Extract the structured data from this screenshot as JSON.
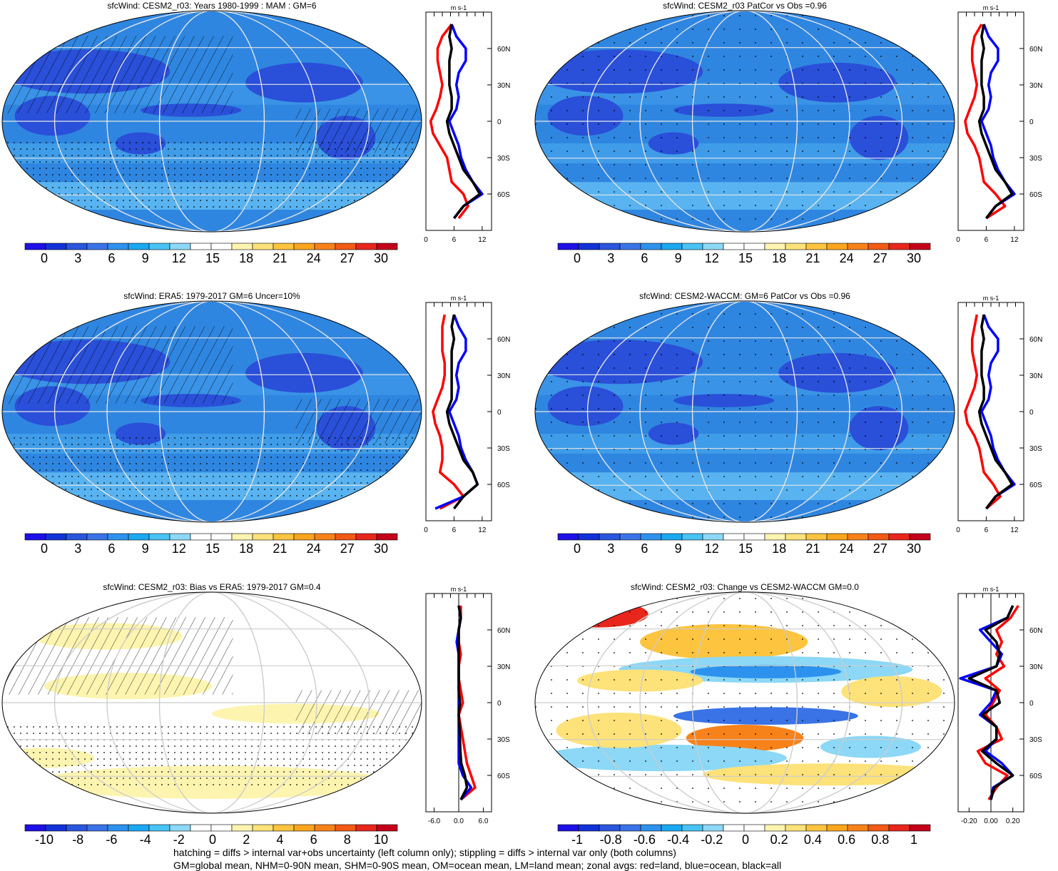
{
  "chart_data": [
    {
      "type": "heatmap",
      "title": "sfcWind: CESM2_r03: Years 1980-1999 : MAM : GM=6",
      "colorbar_ticks": [
        "0",
        "3",
        "6",
        "9",
        "12",
        "15",
        "18",
        "21",
        "24",
        "27",
        "30"
      ],
      "colorbar_range": [
        0,
        30
      ],
      "palette": "blue-white-red",
      "overlay": "hatching and stippling",
      "zonal_profile": {
        "unit": "m s-1",
        "xticks": [
          "0",
          "6",
          "12"
        ],
        "xlim": [
          0,
          14
        ],
        "lat_ticks": [
          "60N",
          "30N",
          "0",
          "30S",
          "60S"
        ],
        "lat": [
          80,
          70,
          60,
          50,
          40,
          30,
          20,
          10,
          0,
          -10,
          -20,
          -30,
          -40,
          -50,
          -60,
          -70,
          -80
        ],
        "series": [
          {
            "name": "land",
            "color": "#ff0000",
            "values": [
              5.5,
              3.5,
              2.5,
              2.5,
              3,
              3.5,
              3,
              2.2,
              1,
              1.5,
              3,
              4.5,
              5,
              5.5,
              8,
              9,
              7
            ]
          },
          {
            "name": "ocean",
            "color": "#0000ff",
            "values": [
              5.5,
              6.5,
              8.5,
              8.5,
              7,
              6.5,
              7,
              6.5,
              5,
              6,
              7,
              7.5,
              8.5,
              10,
              12,
              8,
              6
            ]
          },
          {
            "name": "all",
            "color": "#000000",
            "values": [
              5.5,
              5,
              5.5,
              5,
              5,
              5,
              5.5,
              5.5,
              4.5,
              5,
              6,
              7,
              8,
              10,
              11.5,
              8,
              6
            ]
          }
        ]
      }
    },
    {
      "type": "heatmap",
      "title": "sfcWind: CESM2_r03 PatCor vs Obs =0.96",
      "colorbar_ticks": [
        "0",
        "3",
        "6",
        "9",
        "12",
        "15",
        "18",
        "21",
        "24",
        "27",
        "30"
      ],
      "colorbar_range": [
        0,
        30
      ],
      "palette": "blue-white-red",
      "overlay": "stippling",
      "zonal_profile": {
        "unit": "m s-1",
        "xticks": [
          "0",
          "6",
          "12"
        ],
        "xlim": [
          0,
          14
        ],
        "lat_ticks": [
          "60N",
          "30N",
          "0",
          "30S",
          "60S"
        ],
        "lat": [
          80,
          70,
          60,
          50,
          40,
          30,
          20,
          10,
          0,
          -10,
          -20,
          -30,
          -40,
          -50,
          -60,
          -70,
          -80
        ],
        "series": [
          {
            "name": "land",
            "color": "#ff0000",
            "values": [
              5,
              3.5,
              3,
              3,
              3.5,
              4,
              3.5,
              2.5,
              1.5,
              2,
              3.5,
              4.5,
              5,
              5.5,
              8,
              10,
              6
            ]
          },
          {
            "name": "ocean",
            "color": "#0000ff",
            "values": [
              5.5,
              6.5,
              8.5,
              8.5,
              7,
              6.5,
              7,
              6.5,
              5,
              6,
              7,
              7.5,
              8.5,
              10,
              12,
              8,
              6
            ]
          },
          {
            "name": "all",
            "color": "#000000",
            "values": [
              5.5,
              5,
              5.5,
              5,
              5,
              5,
              5.5,
              5.5,
              4.5,
              5,
              6,
              7,
              8,
              10,
              11.5,
              8,
              6
            ]
          }
        ]
      }
    },
    {
      "type": "heatmap",
      "title": "sfcWind: ERA5: 1979-2017 GM=6 Uncer=10%",
      "colorbar_ticks": [
        "0",
        "3",
        "6",
        "9",
        "12",
        "15",
        "18",
        "21",
        "24",
        "27",
        "30"
      ],
      "colorbar_range": [
        0,
        30
      ],
      "palette": "blue-white-red",
      "overlay": "hatching and stippling",
      "zonal_profile": {
        "unit": "m s-1",
        "xticks": [
          "0",
          "6",
          "12"
        ],
        "xlim": [
          0,
          14
        ],
        "lat_ticks": [
          "60N",
          "30N",
          "0",
          "30S",
          "60S"
        ],
        "lat": [
          80,
          70,
          60,
          50,
          40,
          30,
          20,
          10,
          0,
          -10,
          -20,
          -30,
          -40,
          -50,
          -60,
          -70,
          -80
        ],
        "series": [
          {
            "name": "land",
            "color": "#ff0000",
            "values": [
              4,
              3.5,
              3.5,
              3.5,
              4,
              4,
              3.5,
              2.5,
              1.5,
              2,
              3,
              3.5,
              3.5,
              3,
              6,
              8,
              3
            ]
          },
          {
            "name": "ocean",
            "color": "#0000ff",
            "values": [
              6,
              7,
              8.5,
              8.5,
              7,
              6.5,
              7,
              6.5,
              5,
              6,
              7,
              7.5,
              8.5,
              10,
              11,
              8,
              2
            ]
          },
          {
            "name": "all",
            "color": "#000000",
            "values": [
              6,
              5.5,
              6,
              5.5,
              5.5,
              5.5,
              5.5,
              5.5,
              4.5,
              5,
              6,
              7,
              8,
              10,
              11,
              8,
              6
            ]
          }
        ]
      }
    },
    {
      "type": "heatmap",
      "title": "sfcWind: CESM2-WACCM: GM=6 PatCor vs Obs =0.96",
      "colorbar_ticks": [
        "0",
        "3",
        "6",
        "9",
        "12",
        "15",
        "18",
        "21",
        "24",
        "27",
        "30"
      ],
      "colorbar_range": [
        0,
        30
      ],
      "palette": "blue-white-red",
      "overlay": "stippling",
      "zonal_profile": {
        "unit": "m s-1",
        "xticks": [
          "0",
          "6",
          "12"
        ],
        "xlim": [
          0,
          14
        ],
        "lat_ticks": [
          "60N",
          "30N",
          "0",
          "30S",
          "60S"
        ],
        "lat": [
          80,
          70,
          60,
          50,
          40,
          30,
          20,
          10,
          0,
          -10,
          -20,
          -30,
          -40,
          -50,
          -60,
          -70,
          -80
        ],
        "series": [
          {
            "name": "land",
            "color": "#ff0000",
            "values": [
              4,
              3.5,
              3,
              3,
              3.5,
              4,
              3.5,
              2.5,
              1.5,
              2,
              3.5,
              4.5,
              5,
              5.5,
              7.5,
              9,
              6
            ]
          },
          {
            "name": "ocean",
            "color": "#0000ff",
            "values": [
              5.5,
              6.5,
              8.5,
              8.5,
              7,
              6.5,
              7,
              6.5,
              5,
              6,
              7,
              7.5,
              8.5,
              10,
              12,
              8,
              6
            ]
          },
          {
            "name": "all",
            "color": "#000000",
            "values": [
              5.5,
              5,
              5.5,
              5,
              5,
              5,
              5.5,
              5.5,
              4.5,
              5,
              6,
              7,
              8,
              10,
              11.5,
              8,
              6
            ]
          }
        ]
      }
    },
    {
      "type": "heatmap",
      "title": "sfcWind: CESM2_r03: Bias vs ERA5: 1979-2017 GM=0.4",
      "colorbar_ticks": [
        "-10",
        "-8",
        "-6",
        "-4",
        "-2",
        "0",
        "2",
        "4",
        "6",
        "8",
        "10"
      ],
      "colorbar_range": [
        -10,
        10
      ],
      "palette": "blue-white-red",
      "overlay": "hatching and stippling",
      "zonal_profile": {
        "unit": "m s-1",
        "xticks": [
          "-6.0",
          "0.0",
          "6.0"
        ],
        "xlim": [
          -8,
          8
        ],
        "lat_ticks": [
          "60N",
          "30N",
          "0",
          "30S",
          "60S"
        ],
        "lat": [
          80,
          70,
          60,
          50,
          40,
          30,
          20,
          10,
          0,
          -10,
          -20,
          -30,
          -40,
          -50,
          -60,
          -70,
          -80
        ],
        "series": [
          {
            "name": "land",
            "color": "#ff0000",
            "values": [
              0.5,
              0.5,
              0,
              0,
              0.5,
              0,
              0,
              0.5,
              1,
              0,
              0.5,
              1,
              1.5,
              2,
              3,
              4,
              0.5
            ]
          },
          {
            "name": "ocean",
            "color": "#0000ff",
            "values": [
              0,
              0.5,
              0,
              -0.5,
              0,
              0,
              0,
              0,
              0,
              0,
              0,
              0,
              0,
              0,
              1,
              3,
              0.5
            ]
          },
          {
            "name": "all",
            "color": "#000000",
            "values": [
              0,
              0.5,
              0,
              0,
              0,
              0,
              0,
              0,
              0.3,
              0,
              0.2,
              0.3,
              0.4,
              0.6,
              1.5,
              2,
              0.5
            ]
          }
        ]
      }
    },
    {
      "type": "heatmap",
      "title": "sfcWind: CESM2_r03: Change vs CESM2-WACCM GM=0.0",
      "colorbar_ticks": [
        "-1",
        "-0.8",
        "-0.6",
        "-0.4",
        "-0.2",
        "0",
        "0.2",
        "0.4",
        "0.6",
        "0.8",
        "1"
      ],
      "colorbar_range": [
        -1,
        1
      ],
      "palette": "blue-white-red",
      "overlay": "stippling",
      "zonal_profile": {
        "unit": "m s-1",
        "xticks": [
          "-0.20",
          "0.00",
          "0.20"
        ],
        "xlim": [
          -0.3,
          0.3
        ],
        "lat_ticks": [
          "60N",
          "30N",
          "0",
          "30S",
          "60S"
        ],
        "lat": [
          80,
          70,
          60,
          50,
          40,
          30,
          20,
          10,
          0,
          -10,
          -20,
          -30,
          -40,
          -50,
          -60,
          -70,
          -80
        ],
        "series": [
          {
            "name": "land",
            "color": "#ff0000",
            "values": [
              0.25,
              0.18,
              0.05,
              0.1,
              0.05,
              0.12,
              -0.05,
              0.08,
              0.02,
              -0.05,
              0.05,
              0.1,
              -0.12,
              -0.05,
              0.15,
              0.05,
              -0.02
            ]
          },
          {
            "name": "ocean",
            "color": "#0000ff",
            "values": [
              0.2,
              0.15,
              -0.1,
              0.0,
              0.1,
              0.05,
              -0.28,
              0.05,
              0.0,
              -0.1,
              0.05,
              0.05,
              -0.05,
              0.1,
              0.2,
              0.02,
              0.0
            ]
          },
          {
            "name": "all",
            "color": "#000000",
            "values": [
              0.2,
              0.15,
              -0.05,
              0.05,
              0.08,
              0.05,
              -0.2,
              0.05,
              0.08,
              -0.08,
              0.05,
              0.05,
              -0.08,
              0.05,
              0.2,
              0.03,
              0.0
            ]
          }
        ]
      }
    }
  ],
  "footer": {
    "line1": "hatching = diffs > internal var+obs uncertainty (left column only); stippling = diffs > internal var only (both columns)",
    "line2": "GM=global mean, NHM=0-90N mean, SHM=0-90S mean, OM=ocean mean, LM=land mean; zonal avgs: red=land, blue=ocean, black=all"
  }
}
